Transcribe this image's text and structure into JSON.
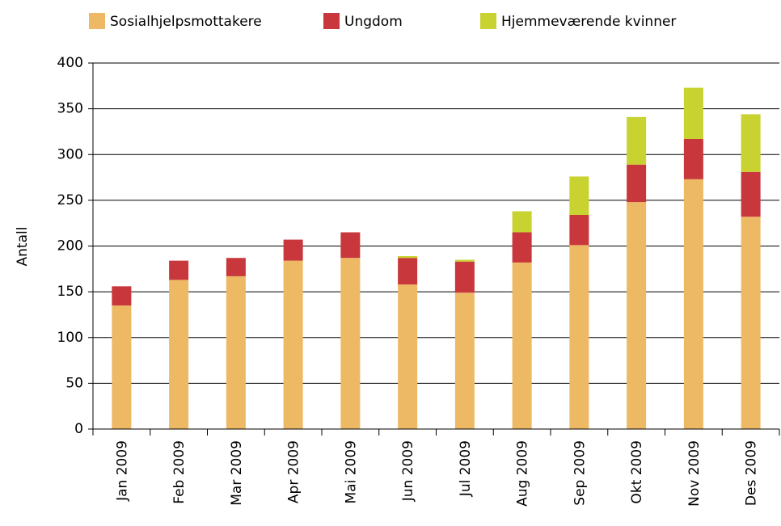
{
  "chart_data": {
    "type": "bar",
    "stacked": true,
    "ylabel": "Antall",
    "categories": [
      "Jan 2009",
      "Feb 2009",
      "Mar 2009",
      "Apr 2009",
      "Mai 2009",
      "Jun 2009",
      "Jul 2009",
      "Aug 2009",
      "Sep 2009",
      "Okt 2009",
      "Nov 2009",
      "Des 2009"
    ],
    "series": [
      {
        "name": "Sosialhjelpsmottakere",
        "color": "#edb964",
        "values": [
          135,
          163,
          167,
          184,
          187,
          158,
          149,
          182,
          201,
          248,
          273,
          232
        ]
      },
      {
        "name": "Ungdom",
        "color": "#c8373c",
        "values": [
          21,
          21,
          20,
          23,
          28,
          29,
          34,
          33,
          33,
          41,
          44,
          49
        ]
      },
      {
        "name": "Hjemmeværende kvinner",
        "color": "#c8d230",
        "values": [
          0,
          0,
          0,
          0,
          0,
          2,
          2,
          23,
          42,
          52,
          56,
          63
        ]
      }
    ],
    "ylim": [
      0,
      400
    ],
    "yticks": [
      0,
      50,
      100,
      150,
      200,
      250,
      300,
      350,
      400
    ],
    "grid": true,
    "legend": "top"
  }
}
